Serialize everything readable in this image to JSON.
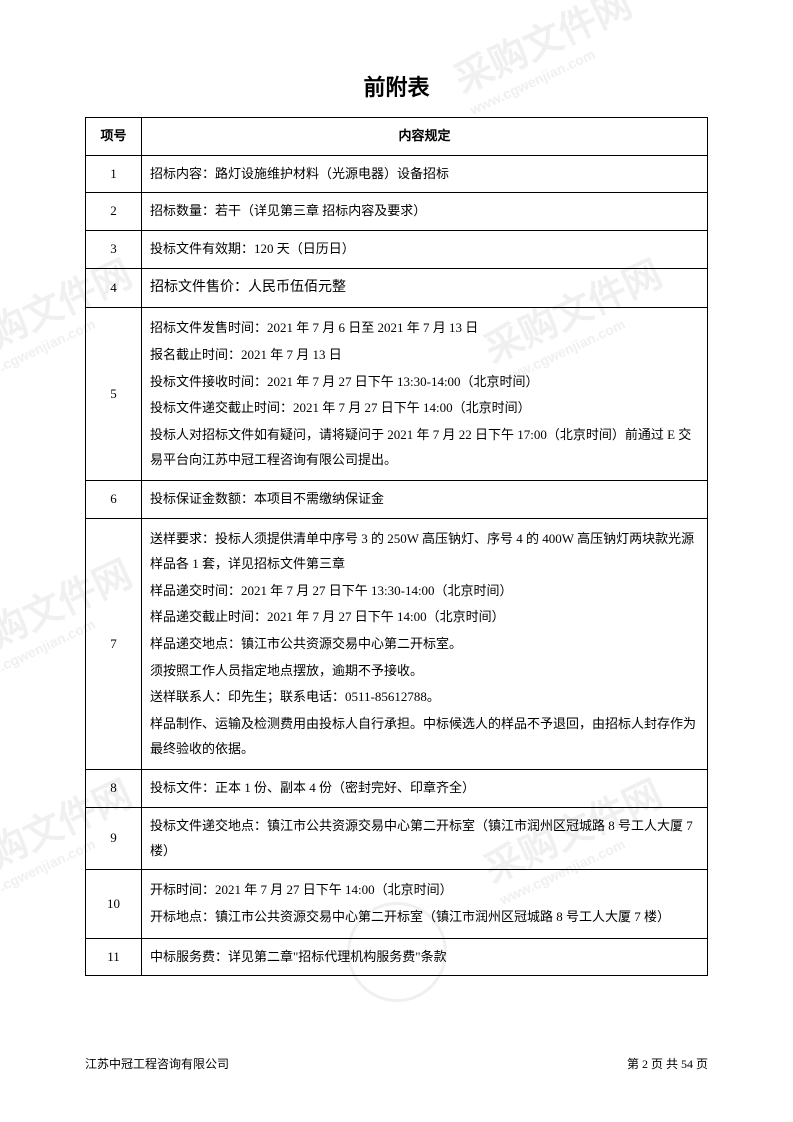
{
  "title": "前附表",
  "header": {
    "col1": "项号",
    "col2": "内容规定"
  },
  "rows": {
    "r1": {
      "num": "1",
      "content": "招标内容：路灯设施维护材料（光源电器）设备招标"
    },
    "r2": {
      "num": "2",
      "content": "招标数量：若干（详见第三章 招标内容及要求）"
    },
    "r3": {
      "num": "3",
      "content": "投标文件有效期：120 天（日历日）"
    },
    "r4": {
      "num": "4",
      "content": "招标文件售价：人民币伍佰元整"
    },
    "r5": {
      "num": "5",
      "l1": "招标文件发售时间：2021 年 7 月 6 日至 2021 年 7 月 13 日",
      "l2": "报名截止时间：2021 年 7 月 13 日",
      "l3": "投标文件接收时间：2021 年 7 月 27 日下午 13:30-14:00（北京时间）",
      "l4": "投标文件递交截止时间：2021 年 7 月 27 日下午 14:00（北京时间）",
      "l5": "投标人对招标文件如有疑问，请将疑问于 2021 年 7 月 22 日下午 17:00（北京时间）前通过 E 交易平台向江苏中冠工程咨询有限公司提出。"
    },
    "r6": {
      "num": "6",
      "content": "投标保证金数额：本项目不需缴纳保证金"
    },
    "r7": {
      "num": "7",
      "l1": "送样要求：投标人须提供清单中序号 3 的 250W 高压钠灯、序号 4 的 400W 高压钠灯两块款光源样品各 1 套，详见招标文件第三章",
      "l2": "样品递交时间：2021 年 7 月 27 日下午 13:30-14:00（北京时间）",
      "l3": "样品递交截止时间：2021 年 7 月 27 日下午 14:00（北京时间）",
      "l4": "样品递交地点：镇江市公共资源交易中心第二开标室。",
      "l5": "须按照工作人员指定地点摆放，逾期不予接收。",
      "l6": "送样联系人：印先生；联系电话：0511-85612788。",
      "l7": "样品制作、运输及检测费用由投标人自行承担。中标候选人的样品不予退回，由招标人封存作为最终验收的依据。"
    },
    "r8": {
      "num": "8",
      "content": "投标文件：正本 1 份、副本 4 份（密封完好、印章齐全）"
    },
    "r9": {
      "num": "9",
      "content": "投标文件递交地点：镇江市公共资源交易中心第二开标室（镇江市润州区冠城路 8 号工人大厦 7 楼）"
    },
    "r10": {
      "num": "10",
      "l1": "开标时间：2021 年 7 月 27 日下午 14:00（北京时间）",
      "l2": "开标地点：镇江市公共资源交易中心第二开标室（镇江市润州区冠城路 8 号工人大厦 7 楼）"
    },
    "r11": {
      "num": "11",
      "content": "中标服务费：详见第二章\"招标代理机构服务费\"条款"
    }
  },
  "footer": {
    "left": "江苏中冠工程咨询有限公司",
    "right": "第 2 页 共 54 页"
  },
  "watermark": "采购文件网",
  "watermark_url": "www.cgwenjian.com"
}
